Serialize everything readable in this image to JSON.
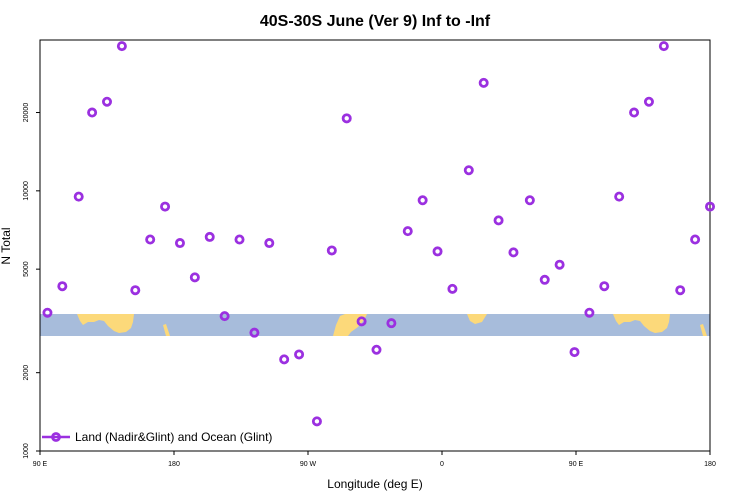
{
  "chart_data": {
    "type": "scatter",
    "title": "40S-30S June (Ver 9)   Inf to -Inf",
    "xlabel": "Longitude (deg E)",
    "ylabel": "N Total",
    "y_scale": "log",
    "x_ticks": [
      {
        "value": 90,
        "label": "90 E"
      },
      {
        "value": 180,
        "label": "180"
      },
      {
        "value": 270,
        "label": "90 W"
      },
      {
        "value": 360,
        "label": "0"
      },
      {
        "value": 450,
        "label": "90 E"
      },
      {
        "value": 540,
        "label": "180"
      }
    ],
    "y_ticks": [
      {
        "value": 1000,
        "label": "1000"
      },
      {
        "value": 2000,
        "label": "2000"
      },
      {
        "value": 5000,
        "label": "5000"
      },
      {
        "value": 10000,
        "label": "10000"
      },
      {
        "value": 20000,
        "label": "20000"
      }
    ],
    "xlim": [
      90,
      540
    ],
    "ylim": [
      1000,
      38000
    ],
    "colors": {
      "series": "#9b30e0",
      "ocean_band": "#a7bcdb",
      "land": "#fcd97a"
    },
    "legend": {
      "placement": "bottom-left"
    },
    "series": [
      {
        "name": "Land (Nadir&Glint) and Ocean (Glint)",
        "x": [
          95,
          105,
          116,
          125,
          135,
          145,
          154,
          164,
          174,
          184,
          194,
          204,
          214,
          224,
          234,
          244,
          254,
          264,
          276,
          286,
          296,
          306,
          316,
          326,
          337,
          347,
          357,
          367,
          378,
          388,
          398,
          408,
          419,
          429,
          439,
          449,
          459,
          469,
          479,
          489,
          499,
          509,
          520,
          530,
          540
        ],
        "y": [
          3400,
          4300,
          9500,
          20000,
          22000,
          36000,
          4150,
          6500,
          8700,
          6300,
          4650,
          6650,
          3300,
          6500,
          2850,
          6300,
          2250,
          2350,
          1300,
          5900,
          19000,
          3150,
          2450,
          3100,
          7000,
          9200,
          5850,
          4200,
          12000,
          26000,
          7700,
          5800,
          9200,
          4550,
          5200,
          2400,
          3400,
          4300,
          9500,
          20000,
          22000,
          36000,
          4150,
          6500,
          8700
        ]
      }
    ]
  }
}
